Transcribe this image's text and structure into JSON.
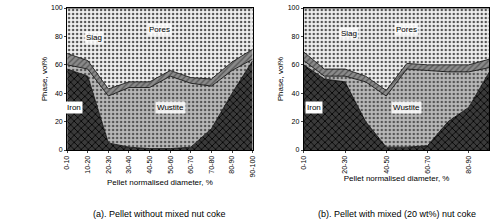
{
  "chart_data": [
    {
      "type": "area",
      "stacked": true,
      "title": "(a). Pellet without mixed nut coke",
      "x_label": "Pellet normalised diameter, %",
      "y_label": "Phase, vol%",
      "categories": [
        "0-10",
        "10-20",
        "20-30",
        "30-40",
        "40-50",
        "50-60",
        "60-70",
        "70-80",
        "80-90",
        "90-100"
      ],
      "series": [
        {
          "name": "Iron",
          "color": "#3a3a3a",
          "values": [
            57,
            52,
            5,
            2,
            1,
            1,
            2,
            15,
            40,
            63
          ]
        },
        {
          "name": "Wustite",
          "color": "#b8b8b8",
          "values": [
            3,
            5,
            33,
            42,
            43,
            51,
            45,
            30,
            16,
            1
          ]
        },
        {
          "name": "Slag",
          "color": "#8a8a8a",
          "values": [
            8,
            6,
            5,
            4,
            4,
            4,
            4,
            5,
            6,
            7
          ]
        },
        {
          "name": "Pores",
          "color": "#f0f0f0",
          "values": [
            32,
            37,
            57,
            52,
            52,
            44,
            49,
            50,
            38,
            29
          ]
        }
      ],
      "ylim": [
        0,
        100
      ],
      "yticks": [
        0,
        20,
        40,
        60,
        80,
        100
      ]
    },
    {
      "type": "area",
      "stacked": true,
      "title": "(b). Pellet with mixed (20 wt%) nut coke",
      "x_label": "Pellet normalised diameter, %",
      "y_label": "Phase, vol%",
      "categories": [
        "0-10",
        null,
        "20-30",
        null,
        "40-50",
        null,
        "60-70",
        null,
        "80-90",
        null
      ],
      "series": [
        {
          "name": "Iron",
          "color": "#3a3a3a",
          "values": [
            60,
            50,
            48,
            20,
            2,
            2,
            3,
            20,
            30,
            55
          ]
        },
        {
          "name": "Wustite",
          "color": "#b8b8b8",
          "values": [
            3,
            2,
            4,
            28,
            36,
            55,
            53,
            35,
            25,
            3
          ]
        },
        {
          "name": "Slag",
          "color": "#8a8a8a",
          "values": [
            6,
            5,
            5,
            4,
            4,
            4,
            4,
            5,
            5,
            6
          ]
        },
        {
          "name": "Pores",
          "color": "#f0f0f0",
          "values": [
            31,
            43,
            43,
            48,
            58,
            39,
            40,
            40,
            40,
            36
          ]
        }
      ],
      "ylim": [
        0,
        100
      ],
      "yticks": [
        0,
        20,
        40,
        60,
        80,
        100
      ]
    }
  ]
}
